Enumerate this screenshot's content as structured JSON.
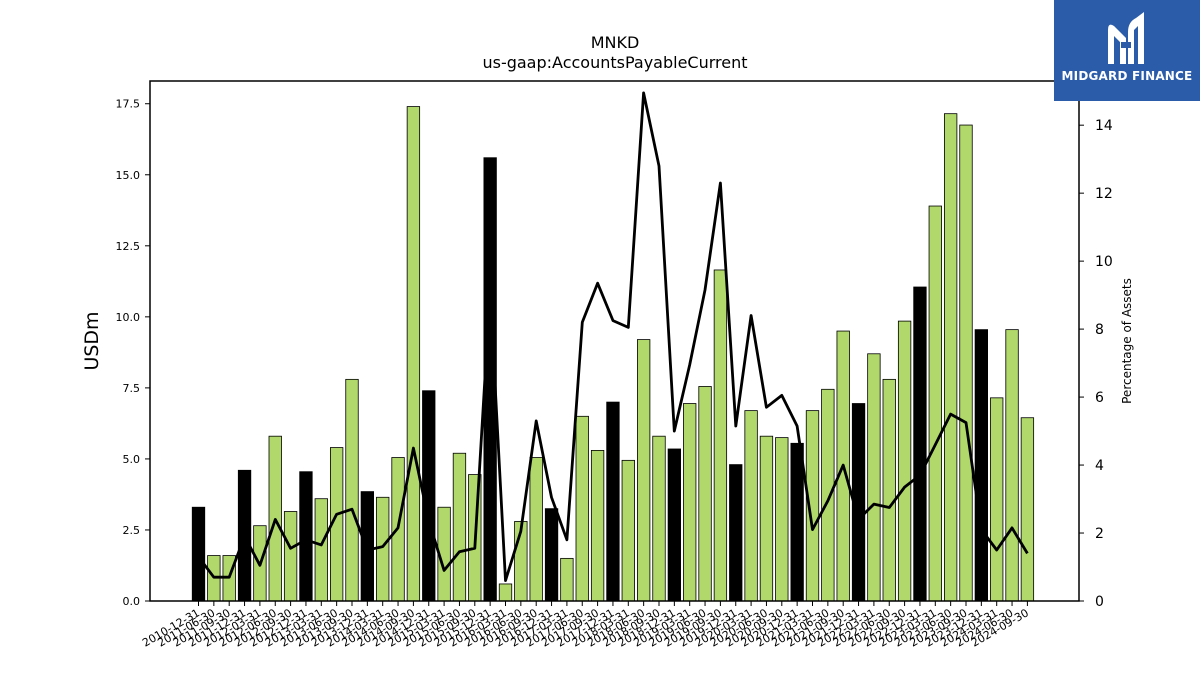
{
  "chart_data": {
    "type": "bar",
    "title": "MNKD",
    "subtitle": "us-gaap:AccountsPayableCurrent",
    "ylabel": "USDm",
    "y2label": "Percentage of Assets",
    "ylim": [
      0,
      18.3
    ],
    "y2lim": [
      0,
      15.3
    ],
    "yticks": [
      "0.0",
      "2.5",
      "5.0",
      "7.5",
      "10.0",
      "12.5",
      "15.0",
      "17.5"
    ],
    "y2ticks": [
      "0",
      "2",
      "4",
      "6",
      "8",
      "10",
      "12",
      "14"
    ],
    "grid": false,
    "categories": [
      "2010-12-31",
      "2011-06-30",
      "2011-09-30",
      "2011-12-31",
      "2012-03-31",
      "2012-06-30",
      "2012-09-30",
      "2012-12-31",
      "2013-03-31",
      "2013-06-30",
      "2013-09-30",
      "2013-12-31",
      "2014-03-31",
      "2014-06-30",
      "2014-09-30",
      "2014-12-31",
      "2015-03-31",
      "2015-06-30",
      "2015-09-30",
      "2015-12-31",
      "2016-03-31",
      "2016-06-30",
      "2016-09-30",
      "2016-12-31",
      "2017-03-31",
      "2017-06-30",
      "2017-09-30",
      "2017-12-31",
      "2018-03-31",
      "2018-06-30",
      "2018-09-30",
      "2018-12-31",
      "2019-03-31",
      "2019-06-30",
      "2019-09-30",
      "2019-12-31",
      "2020-03-31",
      "2020-06-30",
      "2020-09-30",
      "2020-12-31",
      "2021-03-31",
      "2021-06-30",
      "2021-09-30",
      "2021-12-31",
      "2022-03-31",
      "2022-06-30",
      "2022-09-30",
      "2022-12-31",
      "2023-03-31",
      "2023-06-30",
      "2023-09-30",
      "2023-12-31",
      "2024-03-31",
      "2024-06-30",
      "2024-09-30"
    ],
    "values": [
      3.3,
      1.6,
      1.6,
      4.6,
      2.65,
      5.8,
      3.15,
      4.55,
      3.6,
      5.4,
      7.8,
      3.85,
      3.65,
      5.05,
      17.4,
      7.4,
      3.3,
      5.2,
      4.45,
      15.6,
      0.6,
      2.8,
      5.05,
      3.25,
      1.5,
      6.5,
      5.3,
      7.0,
      4.95,
      9.2,
      5.8,
      5.35,
      6.95,
      7.55,
      11.65,
      4.8,
      6.7,
      5.8,
      5.75,
      5.55,
      6.7,
      7.45,
      9.5,
      6.95,
      8.7,
      7.8,
      9.85,
      11.05,
      13.9,
      17.15,
      16.75,
      9.55,
      7.15,
      9.55,
      6.45
    ],
    "highlight": [
      true,
      false,
      false,
      true,
      false,
      false,
      false,
      true,
      false,
      false,
      false,
      true,
      false,
      false,
      false,
      true,
      false,
      false,
      false,
      true,
      false,
      false,
      false,
      true,
      false,
      false,
      false,
      true,
      false,
      false,
      false,
      true,
      false,
      false,
      false,
      true,
      false,
      false,
      false,
      true,
      false,
      false,
      false,
      true,
      false,
      false,
      false,
      true,
      false,
      false,
      false,
      true,
      false,
      false,
      false
    ],
    "percent_of_assets": [
      1.3,
      0.7,
      0.7,
      1.9,
      1.05,
      2.4,
      1.55,
      1.8,
      1.65,
      2.55,
      2.7,
      1.5,
      1.6,
      2.15,
      4.5,
      2.35,
      0.9,
      1.45,
      1.55,
      9.1,
      0.6,
      2.05,
      5.3,
      3.05,
      1.8,
      8.2,
      9.35,
      8.25,
      8.05,
      14.95,
      12.8,
      5.0,
      6.95,
      9.15,
      12.3,
      5.15,
      8.4,
      5.7,
      6.05,
      5.15,
      2.1,
      2.95,
      4.0,
      2.4,
      2.85,
      2.75,
      3.35,
      3.7,
      4.6,
      5.5,
      5.25,
      2.1,
      1.5,
      2.15,
      1.4
    ],
    "colors": {
      "bar": "#b0d86a",
      "bar_highlight": "#000000",
      "line": "#000000",
      "bar_edge": "#000000"
    }
  },
  "logo": {
    "text": "MIDGARD FINANCE",
    "bg": "#2a5caa"
  }
}
